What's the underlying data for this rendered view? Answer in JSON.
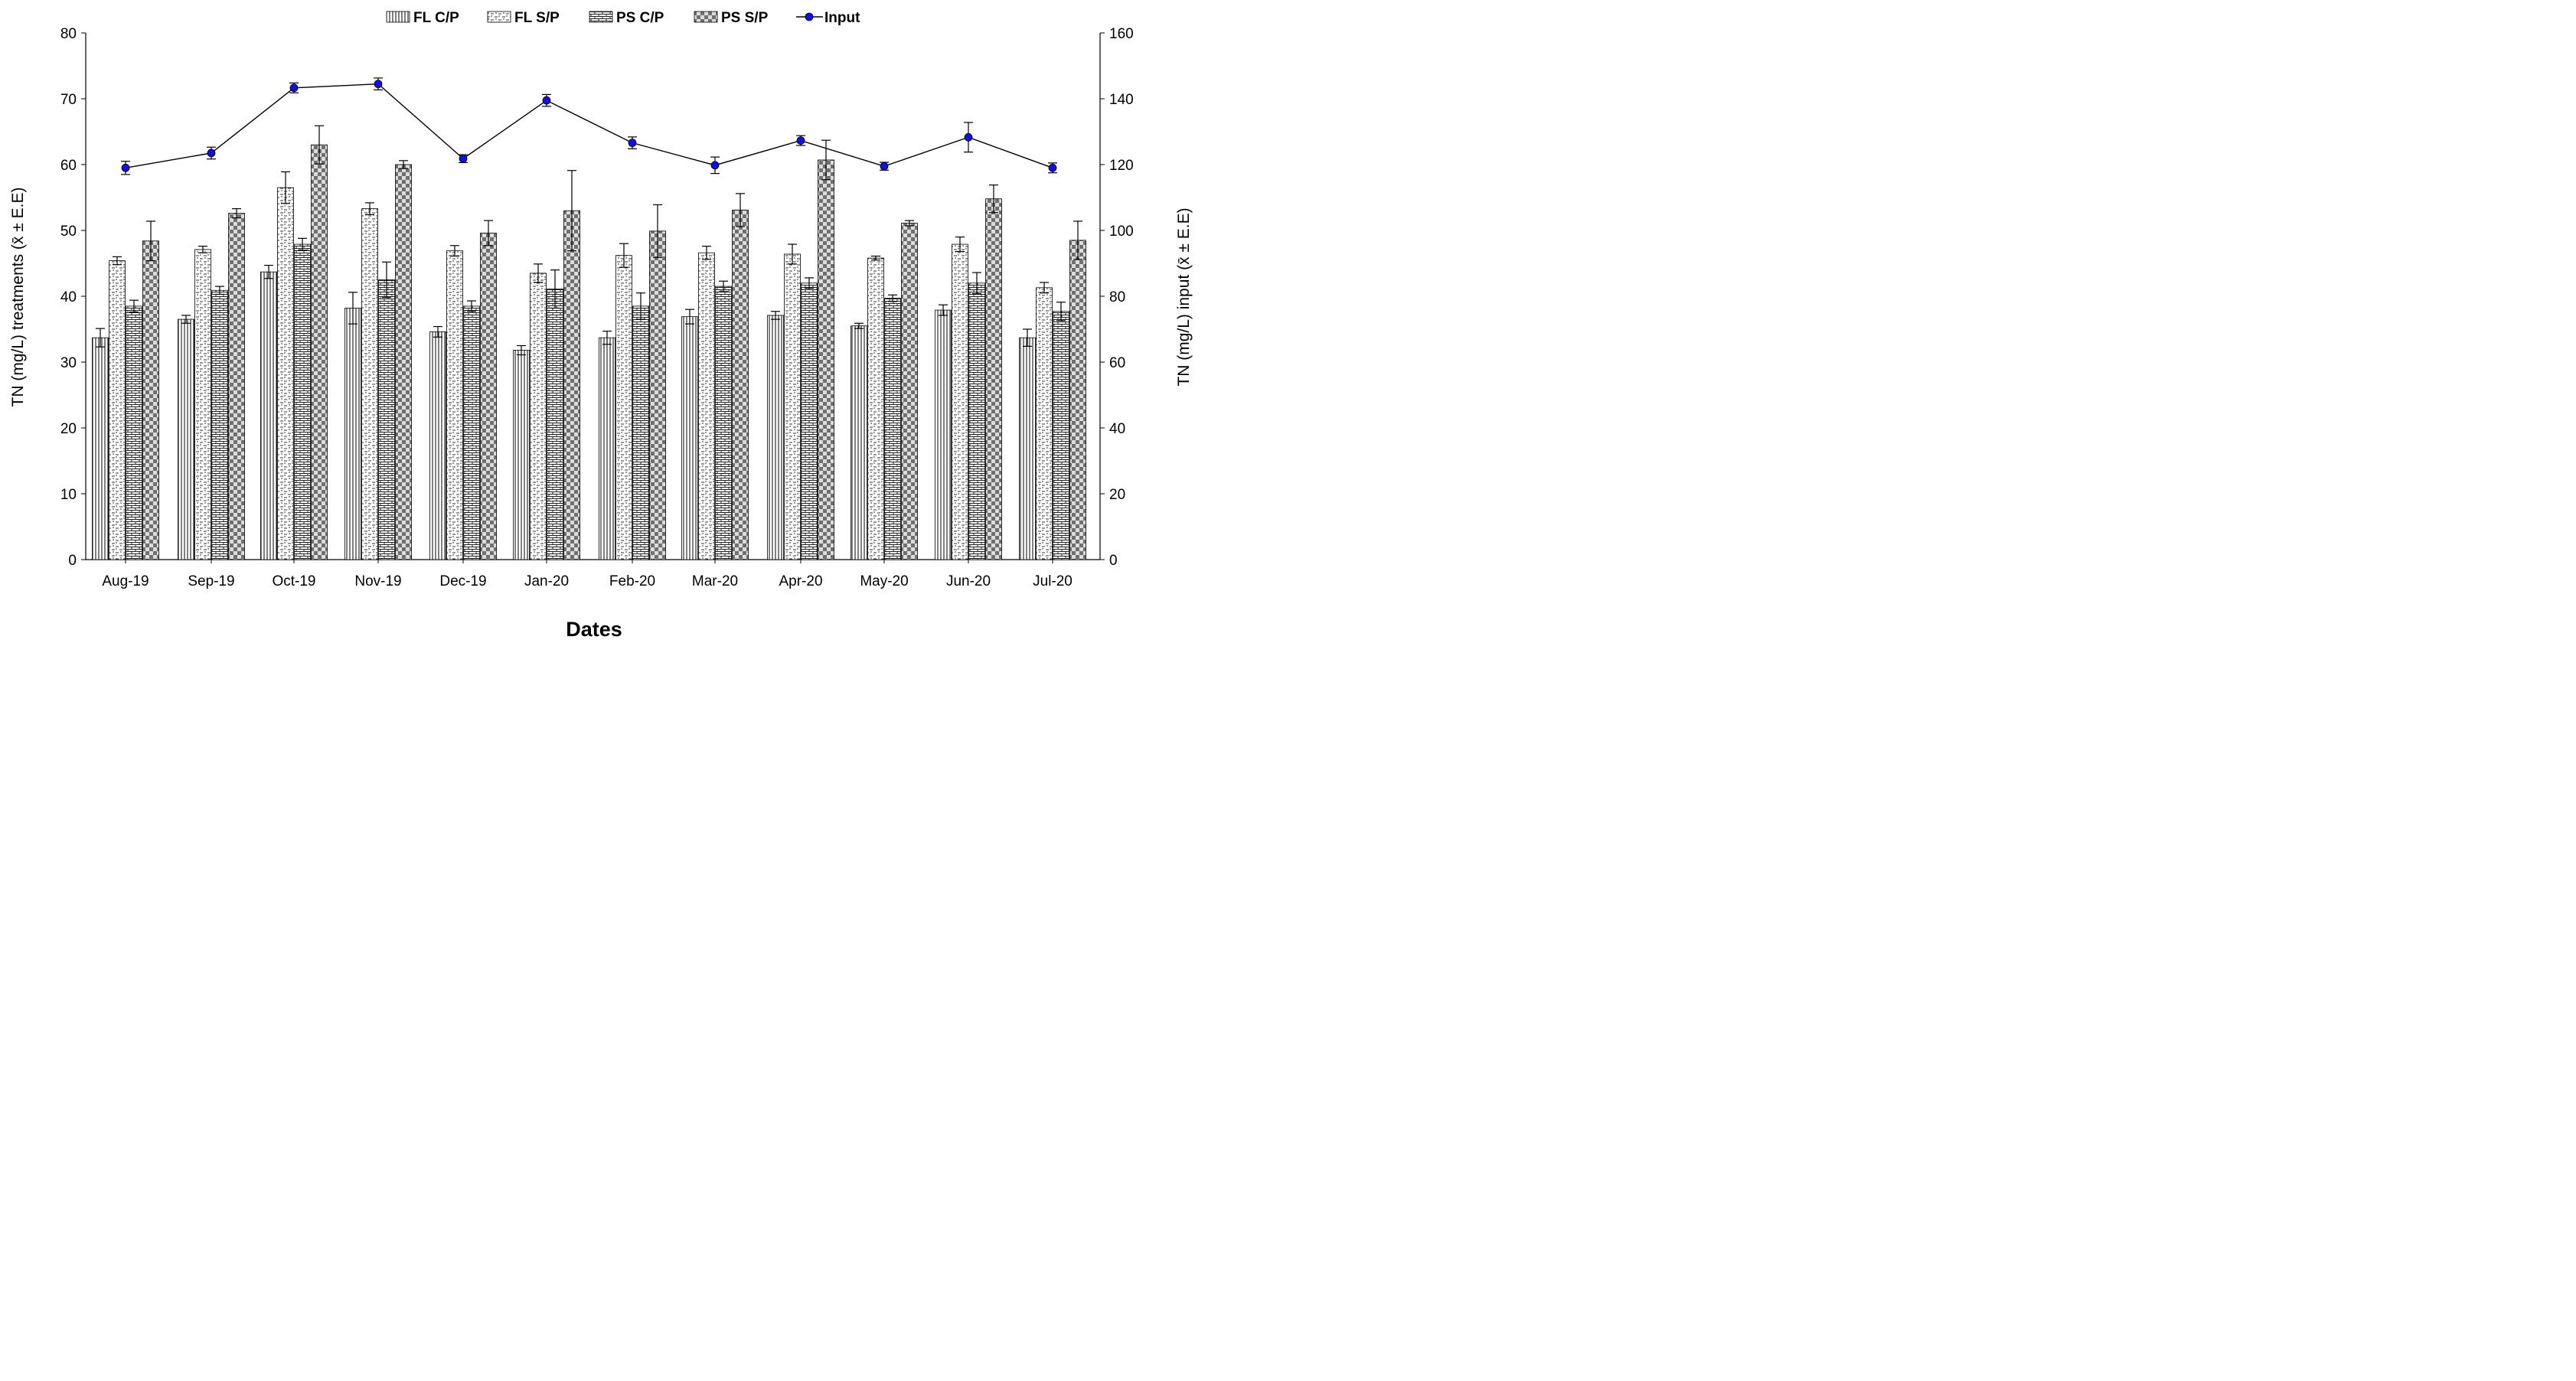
{
  "chart_data": {
    "type": "bar",
    "title": "",
    "xlabel": "Dates",
    "ylabel": "TN (mg/L) treatments (x̄ ± E.E)",
    "y2label": "TN (mg/L) input (x̄ ± E.E)",
    "ylim": [
      0,
      80
    ],
    "y2lim": [
      0,
      160
    ],
    "yticks": [
      "0",
      "10",
      "20",
      "30",
      "40",
      "50",
      "60",
      "70",
      "80"
    ],
    "y2ticks": [
      "0",
      "20",
      "40",
      "60",
      "80",
      "100",
      "120",
      "140",
      "160"
    ],
    "legend_position": "top-center",
    "grid": false,
    "categories": [
      "Aug-19",
      "Sep-19",
      "Oct-19",
      "Nov-19",
      "Dec-19",
      "Jan-20",
      "Feb-20",
      "Mar-20",
      "Apr-20",
      "May-20",
      "Jun-20",
      "Jul-20"
    ],
    "series": [
      {
        "name": "FL C/P",
        "pattern": "vertical-lines",
        "values": [
          33.7,
          36.5,
          43.7,
          38.2,
          34.6,
          31.8,
          33.7,
          36.9,
          37.1,
          35.5,
          37.9,
          33.7
        ],
        "errors": [
          1.4,
          0.6,
          1.0,
          2.4,
          0.8,
          0.7,
          1.0,
          1.1,
          0.6,
          0.4,
          0.8,
          1.3
        ]
      },
      {
        "name": "FL S/P",
        "pattern": "dashes",
        "values": [
          45.4,
          47.1,
          56.5,
          53.3,
          46.9,
          43.5,
          46.2,
          46.6,
          46.4,
          45.8,
          47.9,
          41.3
        ],
        "errors": [
          0.6,
          0.5,
          2.4,
          0.9,
          0.8,
          1.4,
          1.8,
          1.0,
          1.5,
          0.3,
          1.1,
          0.8
        ]
      },
      {
        "name": "PS C/P",
        "pattern": "bricks",
        "values": [
          38.5,
          40.9,
          47.9,
          42.5,
          38.5,
          41.1,
          38.5,
          41.5,
          42.0,
          39.7,
          42.0,
          37.7
        ],
        "errors": [
          0.9,
          0.6,
          0.9,
          2.7,
          0.8,
          2.9,
          2.0,
          0.8,
          0.8,
          0.5,
          1.6,
          1.4
        ]
      },
      {
        "name": "PS S/P",
        "pattern": "checker",
        "values": [
          48.4,
          52.6,
          63.0,
          60.0,
          49.6,
          53.0,
          49.9,
          53.1,
          60.7,
          51.1,
          54.8,
          48.5
        ],
        "errors": [
          3.0,
          0.7,
          2.9,
          0.6,
          1.9,
          6.1,
          4.0,
          2.5,
          3.0,
          0.4,
          2.1,
          2.9
        ]
      }
    ],
    "line_series": {
      "name": "Input",
      "axis": "right",
      "color": "#1010e0",
      "values": [
        119,
        123.5,
        143.3,
        144.5,
        121.8,
        139.5,
        126.6,
        119.8,
        127.3,
        119.5,
        128.3,
        119.0
      ],
      "errors": [
        2.0,
        1.8,
        1.5,
        1.8,
        1.2,
        1.8,
        1.8,
        2.5,
        1.5,
        1.2,
        4.5,
        1.5
      ]
    }
  }
}
